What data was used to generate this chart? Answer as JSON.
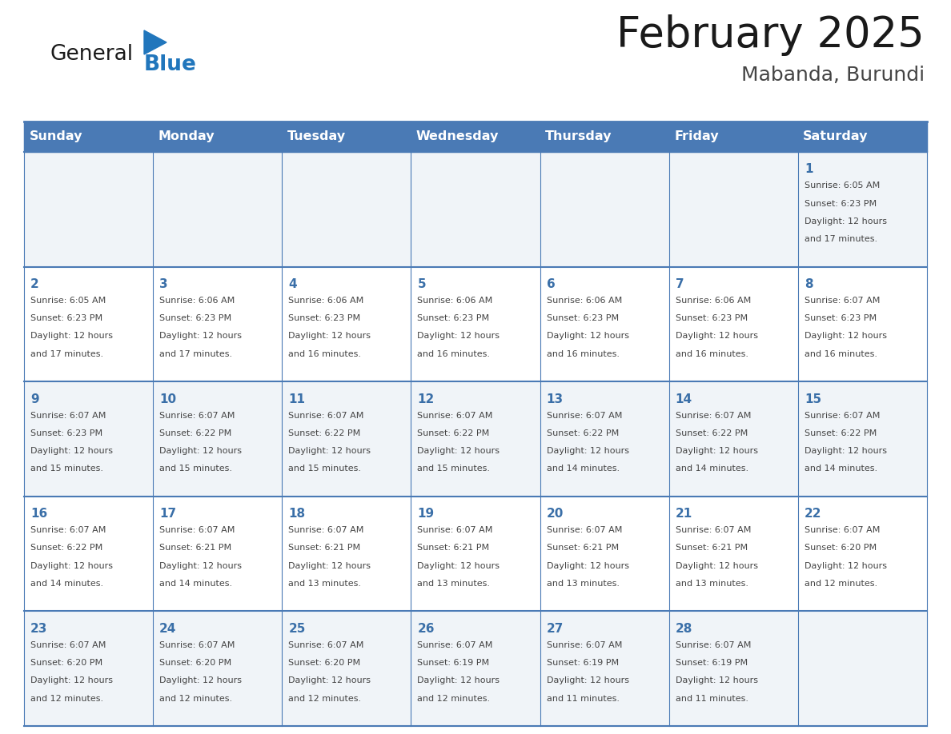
{
  "title": "February 2025",
  "subtitle": "Mabanda, Burundi",
  "header_bg": "#4a7ab5",
  "header_text": "#ffffff",
  "header_days": [
    "Sunday",
    "Monday",
    "Tuesday",
    "Wednesday",
    "Thursday",
    "Friday",
    "Saturday"
  ],
  "row_bg_even": "#f0f4f8",
  "row_bg_odd": "#ffffff",
  "day_number_color": "#3a6fa8",
  "cell_text_color": "#444444",
  "grid_color": "#4a7ab5",
  "title_color": "#1a1a1a",
  "subtitle_color": "#444444",
  "logo_general_color": "#1a1a1a",
  "logo_blue_color": "#2176bc",
  "calendar_data": [
    {
      "day": 1,
      "col": 6,
      "row": 0,
      "sunrise": "6:05 AM",
      "sunset": "6:23 PM",
      "daylight": "12 hours and 17 minutes."
    },
    {
      "day": 2,
      "col": 0,
      "row": 1,
      "sunrise": "6:05 AM",
      "sunset": "6:23 PM",
      "daylight": "12 hours and 17 minutes."
    },
    {
      "day": 3,
      "col": 1,
      "row": 1,
      "sunrise": "6:06 AM",
      "sunset": "6:23 PM",
      "daylight": "12 hours and 17 minutes."
    },
    {
      "day": 4,
      "col": 2,
      "row": 1,
      "sunrise": "6:06 AM",
      "sunset": "6:23 PM",
      "daylight": "12 hours and 16 minutes."
    },
    {
      "day": 5,
      "col": 3,
      "row": 1,
      "sunrise": "6:06 AM",
      "sunset": "6:23 PM",
      "daylight": "12 hours and 16 minutes."
    },
    {
      "day": 6,
      "col": 4,
      "row": 1,
      "sunrise": "6:06 AM",
      "sunset": "6:23 PM",
      "daylight": "12 hours and 16 minutes."
    },
    {
      "day": 7,
      "col": 5,
      "row": 1,
      "sunrise": "6:06 AM",
      "sunset": "6:23 PM",
      "daylight": "12 hours and 16 minutes."
    },
    {
      "day": 8,
      "col": 6,
      "row": 1,
      "sunrise": "6:07 AM",
      "sunset": "6:23 PM",
      "daylight": "12 hours and 16 minutes."
    },
    {
      "day": 9,
      "col": 0,
      "row": 2,
      "sunrise": "6:07 AM",
      "sunset": "6:23 PM",
      "daylight": "12 hours and 15 minutes."
    },
    {
      "day": 10,
      "col": 1,
      "row": 2,
      "sunrise": "6:07 AM",
      "sunset": "6:22 PM",
      "daylight": "12 hours and 15 minutes."
    },
    {
      "day": 11,
      "col": 2,
      "row": 2,
      "sunrise": "6:07 AM",
      "sunset": "6:22 PM",
      "daylight": "12 hours and 15 minutes."
    },
    {
      "day": 12,
      "col": 3,
      "row": 2,
      "sunrise": "6:07 AM",
      "sunset": "6:22 PM",
      "daylight": "12 hours and 15 minutes."
    },
    {
      "day": 13,
      "col": 4,
      "row": 2,
      "sunrise": "6:07 AM",
      "sunset": "6:22 PM",
      "daylight": "12 hours and 14 minutes."
    },
    {
      "day": 14,
      "col": 5,
      "row": 2,
      "sunrise": "6:07 AM",
      "sunset": "6:22 PM",
      "daylight": "12 hours and 14 minutes."
    },
    {
      "day": 15,
      "col": 6,
      "row": 2,
      "sunrise": "6:07 AM",
      "sunset": "6:22 PM",
      "daylight": "12 hours and 14 minutes."
    },
    {
      "day": 16,
      "col": 0,
      "row": 3,
      "sunrise": "6:07 AM",
      "sunset": "6:22 PM",
      "daylight": "12 hours and 14 minutes."
    },
    {
      "day": 17,
      "col": 1,
      "row": 3,
      "sunrise": "6:07 AM",
      "sunset": "6:21 PM",
      "daylight": "12 hours and 14 minutes."
    },
    {
      "day": 18,
      "col": 2,
      "row": 3,
      "sunrise": "6:07 AM",
      "sunset": "6:21 PM",
      "daylight": "12 hours and 13 minutes."
    },
    {
      "day": 19,
      "col": 3,
      "row": 3,
      "sunrise": "6:07 AM",
      "sunset": "6:21 PM",
      "daylight": "12 hours and 13 minutes."
    },
    {
      "day": 20,
      "col": 4,
      "row": 3,
      "sunrise": "6:07 AM",
      "sunset": "6:21 PM",
      "daylight": "12 hours and 13 minutes."
    },
    {
      "day": 21,
      "col": 5,
      "row": 3,
      "sunrise": "6:07 AM",
      "sunset": "6:21 PM",
      "daylight": "12 hours and 13 minutes."
    },
    {
      "day": 22,
      "col": 6,
      "row": 3,
      "sunrise": "6:07 AM",
      "sunset": "6:20 PM",
      "daylight": "12 hours and 12 minutes."
    },
    {
      "day": 23,
      "col": 0,
      "row": 4,
      "sunrise": "6:07 AM",
      "sunset": "6:20 PM",
      "daylight": "12 hours and 12 minutes."
    },
    {
      "day": 24,
      "col": 1,
      "row": 4,
      "sunrise": "6:07 AM",
      "sunset": "6:20 PM",
      "daylight": "12 hours and 12 minutes."
    },
    {
      "day": 25,
      "col": 2,
      "row": 4,
      "sunrise": "6:07 AM",
      "sunset": "6:20 PM",
      "daylight": "12 hours and 12 minutes."
    },
    {
      "day": 26,
      "col": 3,
      "row": 4,
      "sunrise": "6:07 AM",
      "sunset": "6:19 PM",
      "daylight": "12 hours and 12 minutes."
    },
    {
      "day": 27,
      "col": 4,
      "row": 4,
      "sunrise": "6:07 AM",
      "sunset": "6:19 PM",
      "daylight": "12 hours and 11 minutes."
    },
    {
      "day": 28,
      "col": 5,
      "row": 4,
      "sunrise": "6:07 AM",
      "sunset": "6:19 PM",
      "daylight": "12 hours and 11 minutes."
    }
  ]
}
